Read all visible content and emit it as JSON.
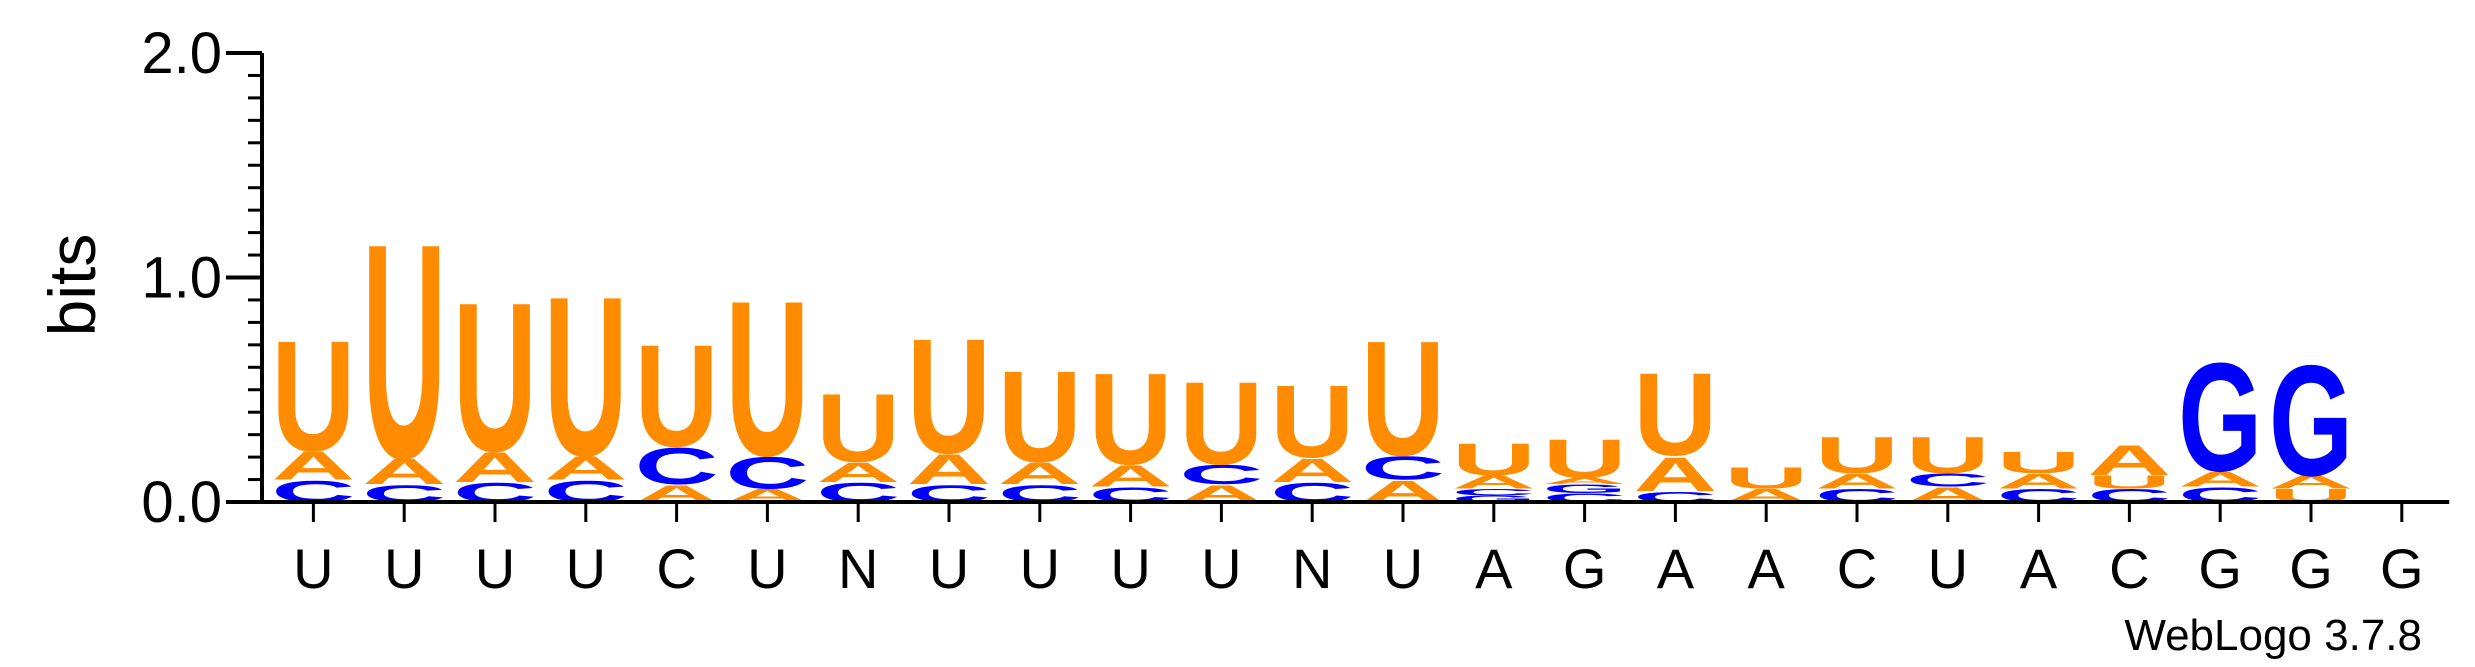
{
  "chart_data": {
    "type": "sequence-logo",
    "ylabel": "bits",
    "ylim": [
      0,
      2.0
    ],
    "yticks": [
      {
        "value": 0.0,
        "label": "0.0"
      },
      {
        "value": 1.0,
        "label": "1.0"
      },
      {
        "value": 2.0,
        "label": "2.0"
      }
    ],
    "colors": {
      "A": "#ff8c00",
      "U": "#ff8c00",
      "C": "#0000ff",
      "G": "#0000ff"
    },
    "credit": "WebLogo 3.7.8",
    "positions": [
      {
        "label": "U",
        "stack": [
          {
            "letter": "C",
            "bits": 0.1
          },
          {
            "letter": "A",
            "bits": 0.13
          },
          {
            "letter": "U",
            "bits": 0.52
          }
        ]
      },
      {
        "label": "U",
        "stack": [
          {
            "letter": "C",
            "bits": 0.08
          },
          {
            "letter": "A",
            "bits": 0.12
          },
          {
            "letter": "U",
            "bits": 1.01
          }
        ]
      },
      {
        "label": "U",
        "stack": [
          {
            "letter": "C",
            "bits": 0.09
          },
          {
            "letter": "A",
            "bits": 0.14
          },
          {
            "letter": "U",
            "bits": 0.7
          }
        ]
      },
      {
        "label": "U",
        "stack": [
          {
            "letter": "C",
            "bits": 0.1
          },
          {
            "letter": "A",
            "bits": 0.11
          },
          {
            "letter": "U",
            "bits": 0.75
          }
        ]
      },
      {
        "label": "C",
        "stack": [
          {
            "letter": "A",
            "bits": 0.08
          },
          {
            "letter": "C",
            "bits": 0.17
          },
          {
            "letter": "U",
            "bits": 0.48
          }
        ]
      },
      {
        "label": "U",
        "stack": [
          {
            "letter": "A",
            "bits": 0.06
          },
          {
            "letter": "C",
            "bits": 0.15
          },
          {
            "letter": "U",
            "bits": 0.73
          }
        ]
      },
      {
        "label": "N",
        "stack": [
          {
            "letter": "C",
            "bits": 0.09
          },
          {
            "letter": "A",
            "bits": 0.09
          },
          {
            "letter": "U",
            "bits": 0.32
          }
        ]
      },
      {
        "label": "U",
        "stack": [
          {
            "letter": "C",
            "bits": 0.08
          },
          {
            "letter": "A",
            "bits": 0.14
          },
          {
            "letter": "U",
            "bits": 0.54
          }
        ]
      },
      {
        "label": "U",
        "stack": [
          {
            "letter": "C",
            "bits": 0.08
          },
          {
            "letter": "A",
            "bits": 0.1
          },
          {
            "letter": "U",
            "bits": 0.43
          }
        ]
      },
      {
        "label": "U",
        "stack": [
          {
            "letter": "C",
            "bits": 0.07
          },
          {
            "letter": "A",
            "bits": 0.1
          },
          {
            "letter": "U",
            "bits": 0.43
          }
        ]
      },
      {
        "label": "U",
        "stack": [
          {
            "letter": "A",
            "bits": 0.08
          },
          {
            "letter": "C",
            "bits": 0.09
          },
          {
            "letter": "U",
            "bits": 0.39
          }
        ]
      },
      {
        "label": "N",
        "stack": [
          {
            "letter": "C",
            "bits": 0.09
          },
          {
            "letter": "A",
            "bits": 0.11
          },
          {
            "letter": "U",
            "bits": 0.34
          }
        ]
      },
      {
        "label": "U",
        "stack": [
          {
            "letter": "A",
            "bits": 0.1
          },
          {
            "letter": "C",
            "bits": 0.11
          },
          {
            "letter": "U",
            "bits": 0.54
          }
        ]
      },
      {
        "label": "A",
        "stack": [
          {
            "letter": "G",
            "bits": 0.03
          },
          {
            "letter": "C",
            "bits": 0.03
          },
          {
            "letter": "A",
            "bits": 0.06
          },
          {
            "letter": "U",
            "bits": 0.15
          }
        ]
      },
      {
        "label": "G",
        "stack": [
          {
            "letter": "C",
            "bits": 0.04
          },
          {
            "letter": "G",
            "bits": 0.04
          },
          {
            "letter": "A",
            "bits": 0.03
          },
          {
            "letter": "U",
            "bits": 0.18
          }
        ]
      },
      {
        "label": "A",
        "stack": [
          {
            "letter": "C",
            "bits": 0.05
          },
          {
            "letter": "A",
            "bits": 0.16
          },
          {
            "letter": "U",
            "bits": 0.39
          }
        ]
      },
      {
        "label": "A",
        "stack": [
          {
            "letter": "A",
            "bits": 0.06
          },
          {
            "letter": "U",
            "bits": 0.1
          }
        ]
      },
      {
        "label": "C",
        "stack": [
          {
            "letter": "C",
            "bits": 0.06
          },
          {
            "letter": "A",
            "bits": 0.07
          },
          {
            "letter": "U",
            "bits": 0.17
          }
        ]
      },
      {
        "label": "U",
        "stack": [
          {
            "letter": "A",
            "bits": 0.07
          },
          {
            "letter": "C",
            "bits": 0.06
          },
          {
            "letter": "U",
            "bits": 0.17
          }
        ]
      },
      {
        "label": "A",
        "stack": [
          {
            "letter": "C",
            "bits": 0.06
          },
          {
            "letter": "A",
            "bits": 0.07
          },
          {
            "letter": "U",
            "bits": 0.1
          }
        ]
      },
      {
        "label": "C",
        "stack": [
          {
            "letter": "C",
            "bits": 0.06
          },
          {
            "letter": "U",
            "bits": 0.06
          },
          {
            "letter": "A",
            "bits": 0.14
          }
        ]
      },
      {
        "label": "G",
        "stack": [
          {
            "letter": "C",
            "bits": 0.07
          },
          {
            "letter": "A",
            "bits": 0.07
          },
          {
            "letter": "G",
            "bits": 0.51
          }
        ]
      },
      {
        "label": "G",
        "stack": [
          {
            "letter": "U",
            "bits": 0.06
          },
          {
            "letter": "A",
            "bits": 0.06
          },
          {
            "letter": "G",
            "bits": 0.52
          }
        ]
      },
      {
        "label": "G",
        "stack": [
          {
            "letter": "U",
            "bits": 0.008
          }
        ]
      }
    ]
  }
}
